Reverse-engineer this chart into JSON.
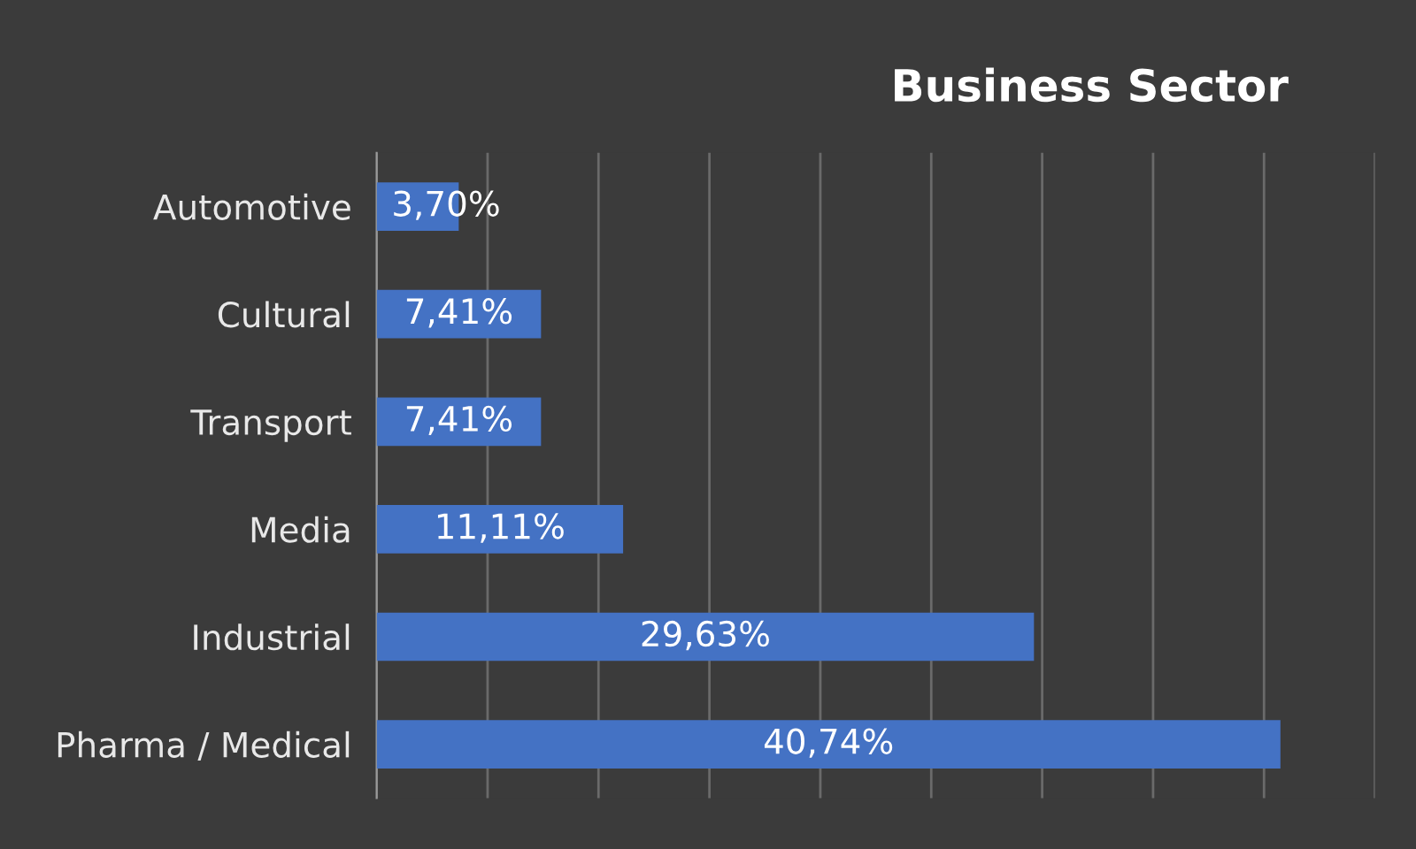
{
  "chart_data": {
    "type": "bar",
    "orientation": "horizontal",
    "title": "Business Sector",
    "categories": [
      "Automotive",
      "Cultural",
      "Transport",
      "Media",
      "Industrial",
      "Pharma / Medical"
    ],
    "values": [
      3.7,
      7.41,
      7.41,
      11.11,
      29.63,
      40.74
    ],
    "value_labels": [
      "3,70%",
      "7,41%",
      "7,41%",
      "11,11%",
      "29,63%",
      "40,74%"
    ],
    "color": "#4472c4",
    "xlim": [
      0,
      45
    ],
    "xticks": [
      {
        "value": 0,
        "label": null
      },
      {
        "value": 5,
        "label": null
      },
      {
        "value": 10,
        "label": null
      },
      {
        "value": 15,
        "label": null
      },
      {
        "value": 20,
        "label": null
      },
      {
        "value": 25,
        "label": null
      },
      {
        "value": 30,
        "label": null
      },
      {
        "value": 35,
        "label": null
      },
      {
        "value": 40,
        "label": null
      },
      {
        "value": 45,
        "label": null
      }
    ],
    "grid": "x",
    "tick_labels": "y"
  }
}
